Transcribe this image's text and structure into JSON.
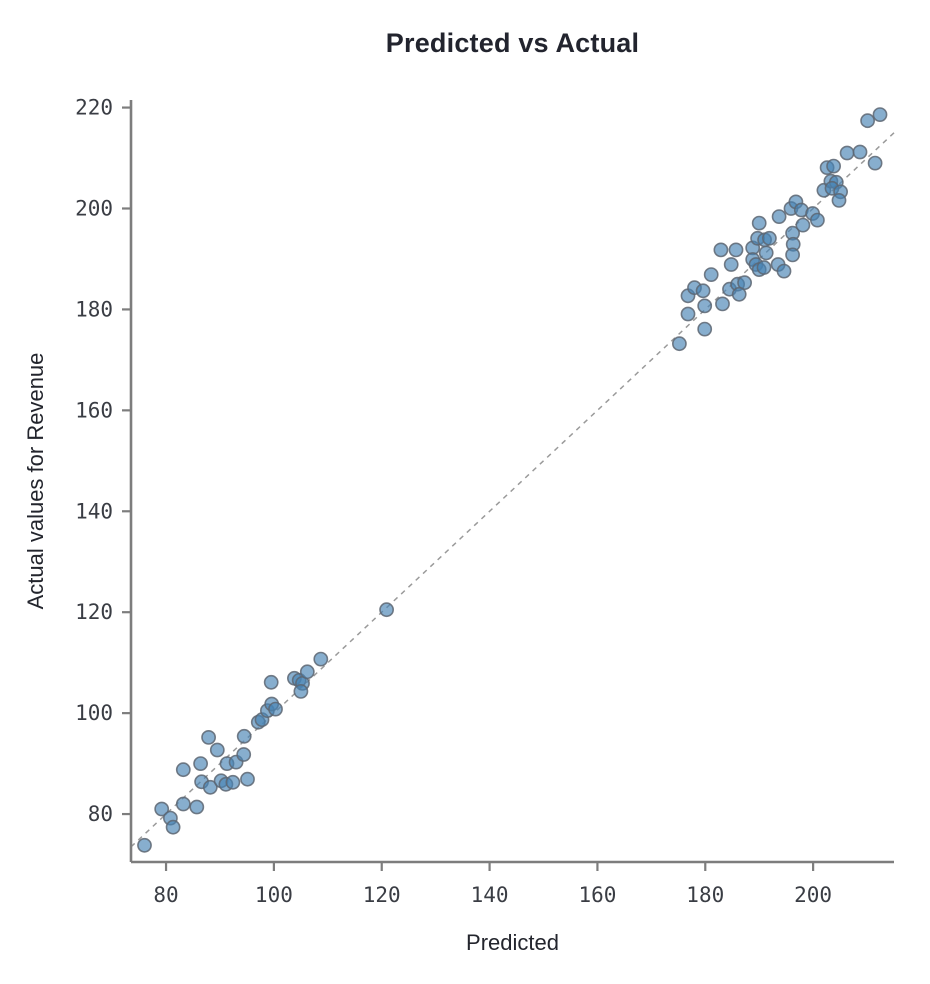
{
  "chart_data": {
    "type": "scatter",
    "title": "Predicted vs Actual",
    "xlabel": "Predicted",
    "ylabel": "Actual values for Revenue",
    "xlim": [
      73.5,
      215
    ],
    "ylim": [
      70.5,
      221.5
    ],
    "x_ticks": [
      80,
      100,
      120,
      140,
      160,
      180,
      200
    ],
    "y_ticks": [
      80,
      100,
      120,
      140,
      160,
      180,
      200,
      220
    ],
    "grid": false,
    "legend": "none",
    "reference_line": {
      "style": "dashed",
      "y_equals_x": true,
      "from": 73.5,
      "to": 215,
      "color": "#9a9a9a"
    },
    "series": [
      {
        "name": "predicted-vs-actual-points",
        "marker": "circle",
        "fill_color": "#4682B4",
        "fill_opacity": 0.65,
        "edge_color": "#5d6672",
        "marker_radius_px": 6.6,
        "points": [
          [
            76.0,
            73.8
          ],
          [
            79.2,
            81.0
          ],
          [
            80.8,
            79.2
          ],
          [
            81.3,
            77.4
          ],
          [
            83.2,
            82.0
          ],
          [
            83.2,
            88.8
          ],
          [
            85.7,
            81.4
          ],
          [
            86.4,
            90.0
          ],
          [
            86.6,
            86.4
          ],
          [
            88.2,
            85.3
          ],
          [
            87.9,
            95.2
          ],
          [
            89.5,
            92.7
          ],
          [
            90.2,
            86.6
          ],
          [
            91.1,
            85.9
          ],
          [
            92.4,
            86.3
          ],
          [
            91.3,
            90.0
          ],
          [
            93.0,
            90.3
          ],
          [
            94.4,
            91.8
          ],
          [
            94.5,
            95.4
          ],
          [
            95.1,
            86.9
          ],
          [
            97.1,
            98.2
          ],
          [
            97.8,
            98.7
          ],
          [
            98.8,
            100.5
          ],
          [
            99.6,
            101.8
          ],
          [
            100.3,
            100.8
          ],
          [
            99.5,
            106.1
          ],
          [
            103.8,
            106.9
          ],
          [
            104.7,
            106.5
          ],
          [
            105.3,
            105.9
          ],
          [
            105.0,
            104.3
          ],
          [
            106.2,
            108.2
          ],
          [
            108.7,
            110.7
          ],
          [
            120.9,
            120.5
          ],
          [
            175.2,
            173.2
          ],
          [
            176.8,
            179.1
          ],
          [
            179.9,
            176.1
          ],
          [
            176.8,
            182.7
          ],
          [
            178.0,
            184.3
          ],
          [
            179.6,
            183.7
          ],
          [
            179.9,
            180.7
          ],
          [
            181.1,
            186.9
          ],
          [
            183.2,
            181.1
          ],
          [
            184.5,
            184.0
          ],
          [
            186.0,
            185.0
          ],
          [
            187.3,
            185.3
          ],
          [
            186.3,
            183.0
          ],
          [
            182.9,
            191.8
          ],
          [
            184.8,
            188.9
          ],
          [
            185.7,
            191.8
          ],
          [
            188.8,
            192.2
          ],
          [
            188.8,
            189.9
          ],
          [
            189.4,
            188.9
          ],
          [
            190.0,
            187.9
          ],
          [
            190.9,
            188.3
          ],
          [
            191.3,
            191.2
          ],
          [
            193.5,
            188.9
          ],
          [
            194.6,
            187.6
          ],
          [
            190.0,
            197.1
          ],
          [
            189.7,
            194.1
          ],
          [
            191.0,
            193.8
          ],
          [
            191.9,
            194.1
          ],
          [
            193.7,
            198.4
          ],
          [
            195.9,
            200.0
          ],
          [
            196.2,
            195.1
          ],
          [
            196.3,
            192.9
          ],
          [
            196.2,
            190.8
          ],
          [
            196.8,
            201.3
          ],
          [
            197.8,
            199.7
          ],
          [
            199.9,
            199.0
          ],
          [
            200.8,
            197.7
          ],
          [
            198.1,
            196.7
          ],
          [
            202.0,
            203.6
          ],
          [
            202.6,
            208.1
          ],
          [
            203.8,
            208.4
          ],
          [
            203.3,
            205.4
          ],
          [
            204.3,
            205.2
          ],
          [
            203.5,
            204.0
          ],
          [
            205.1,
            203.3
          ],
          [
            204.8,
            201.6
          ],
          [
            206.3,
            211.0
          ],
          [
            208.7,
            211.2
          ],
          [
            211.5,
            209.0
          ],
          [
            210.1,
            217.4
          ],
          [
            212.4,
            218.6
          ]
        ]
      }
    ],
    "colors": {
      "background": "#ffffff",
      "spine": "#7d7d7d",
      "tick": "#7d7d7d",
      "tick_label": "#3a3d44",
      "title_text": "#22242e",
      "axis_label_text": "#23252d",
      "dashed_line": "#9a9a9a",
      "point_fill": "#4682B4",
      "point_edge": "#5d6672"
    }
  }
}
